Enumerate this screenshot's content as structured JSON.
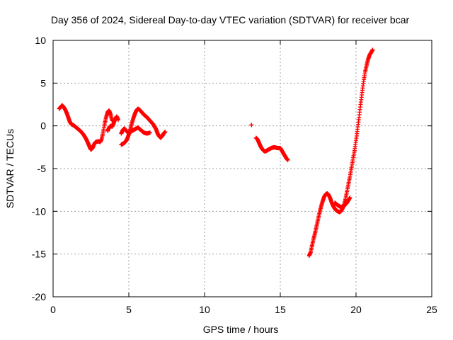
{
  "chart_data": {
    "type": "scatter",
    "title": "Day 356 of 2024, Sidereal Day-to-day VTEC variation (SDTVAR) for receiver bcar",
    "xlabel": "GPS time / hours",
    "ylabel": "SDTVAR / TECUs",
    "xlim": [
      0,
      25
    ],
    "ylim": [
      -20,
      10
    ],
    "xticks": [
      0,
      5,
      10,
      15,
      20,
      25
    ],
    "yticks": [
      -20,
      -15,
      -10,
      -5,
      0,
      5,
      10
    ],
    "xtick_labels": [
      "0",
      "5",
      "10",
      "15",
      "20",
      "25"
    ],
    "ytick_labels": [
      "-20",
      "-15",
      "-10",
      "-5",
      "0",
      "5",
      "10"
    ],
    "grid": true,
    "marker": "plus",
    "color": "#ff0000",
    "series": [
      {
        "segments": [
          {
            "x": [
              0.4,
              0.5,
              0.6,
              0.7,
              0.8,
              0.9,
              1.0,
              1.1,
              1.2,
              1.4,
              1.6,
              1.8,
              2.0,
              2.1,
              2.2,
              2.3,
              2.4,
              2.5,
              2.6,
              2.7,
              2.8,
              3.0,
              3.1,
              3.2,
              3.3,
              3.4,
              3.5,
              3.6,
              3.7,
              3.8,
              3.9
            ],
            "y": [
              2.0,
              2.2,
              2.4,
              2.2,
              1.9,
              1.5,
              1.0,
              0.5,
              0.2,
              0.0,
              -0.3,
              -0.6,
              -1.0,
              -1.3,
              -1.6,
              -2.0,
              -2.4,
              -2.8,
              -2.6,
              -2.2,
              -1.9,
              -1.8,
              -1.9,
              -1.6,
              -0.8,
              0.2,
              1.0,
              1.6,
              1.8,
              1.3,
              0.6
            ]
          },
          {
            "x": [
              3.6,
              3.7,
              3.8,
              3.9,
              4.0,
              4.1,
              4.2,
              4.3
            ],
            "y": [
              -0.6,
              -0.2,
              0.0,
              -0.1,
              0.3,
              0.8,
              1.1,
              0.7
            ]
          },
          {
            "x": [
              4.5,
              4.6,
              4.7,
              4.8,
              4.9,
              5.0,
              5.1,
              5.2,
              5.3,
              5.4,
              5.5,
              5.6,
              5.7,
              5.8,
              5.9,
              6.0,
              6.2,
              6.4,
              6.6,
              6.8,
              6.9,
              7.0,
              7.1,
              7.2,
              7.3,
              7.4
            ],
            "y": [
              -2.2,
              -2.1,
              -2.0,
              -1.8,
              -1.5,
              -1.0,
              -0.4,
              0.3,
              0.9,
              1.4,
              1.8,
              2.0,
              1.9,
              1.7,
              1.5,
              1.3,
              1.0,
              0.6,
              0.2,
              -0.4,
              -0.9,
              -1.2,
              -1.4,
              -1.2,
              -0.9,
              -0.7
            ]
          },
          {
            "x": [
              4.5,
              4.6,
              4.7,
              4.8,
              5.0,
              5.2,
              5.4,
              5.6,
              5.8,
              6.0,
              6.2,
              6.4
            ],
            "y": [
              -0.9,
              -0.5,
              -0.3,
              -0.5,
              -0.9,
              -0.6,
              -0.4,
              -0.2,
              -0.5,
              -0.8,
              -0.9,
              -0.8
            ]
          },
          {
            "x": [
              13.1,
              13.1
            ],
            "y": [
              0.1,
              0.1
            ]
          },
          {
            "x": [
              13.4,
              13.5,
              13.6,
              13.7,
              13.8,
              13.9,
              14.0,
              14.2,
              14.4,
              14.6,
              14.8,
              15.0,
              15.1,
              15.2,
              15.3,
              15.4,
              15.5
            ],
            "y": [
              -1.4,
              -1.6,
              -2.0,
              -2.4,
              -2.7,
              -2.9,
              -3.0,
              -2.8,
              -2.6,
              -2.5,
              -2.6,
              -2.6,
              -2.9,
              -3.2,
              -3.5,
              -3.8,
              -4.0
            ]
          },
          {
            "x": [
              16.9,
              17.0,
              17.1,
              17.2,
              17.3,
              17.4,
              17.5,
              17.6,
              17.7,
              17.8,
              17.9,
              18.0,
              18.1,
              18.2,
              18.3,
              18.4,
              18.5,
              18.6,
              18.7,
              18.8,
              18.9,
              19.0,
              19.1,
              19.2,
              19.3,
              19.4,
              19.5,
              19.6,
              19.7,
              19.8,
              19.9,
              20.0,
              20.1,
              20.2,
              20.3,
              20.4,
              20.5,
              20.6,
              20.7,
              20.8,
              20.9,
              21.0,
              21.1
            ],
            "y": [
              -15.2,
              -14.8,
              -14.0,
              -13.2,
              -12.5,
              -11.7,
              -10.9,
              -10.1,
              -9.4,
              -8.8,
              -8.3,
              -8.0,
              -7.9,
              -8.1,
              -8.5,
              -9.0,
              -9.4,
              -9.7,
              -9.9,
              -10.0,
              -10.1,
              -10.0,
              -9.7,
              -9.3,
              -8.6,
              -7.7,
              -6.8,
              -5.9,
              -4.9,
              -3.9,
              -2.9,
              -1.7,
              -0.4,
              1.0,
              2.5,
              3.9,
              5.2,
              6.3,
              7.1,
              7.8,
              8.3,
              8.6,
              8.9
            ]
          },
          {
            "x": [
              18.6,
              18.8,
              19.0,
              19.2,
              19.4,
              19.6
            ],
            "y": [
              -9.0,
              -9.3,
              -9.5,
              -9.4,
              -9.0,
              -8.4
            ]
          }
        ]
      }
    ]
  }
}
